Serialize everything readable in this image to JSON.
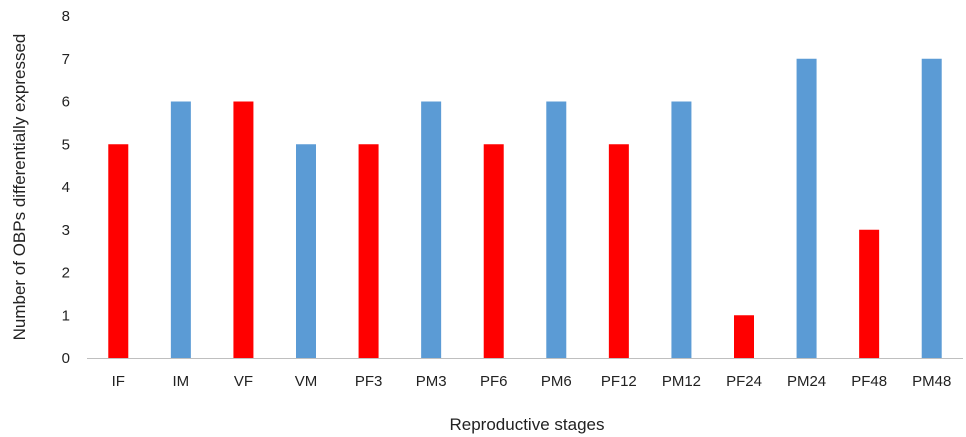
{
  "chart_data": {
    "type": "bar",
    "title": "",
    "xlabel": "Reproductive stages",
    "ylabel": "Number of OBPs differentially expressed",
    "categories": [
      "IF",
      "IM",
      "VF",
      "VM",
      "PF3",
      "PM3",
      "PF6",
      "PM6",
      "PF12",
      "PM12",
      "PF24",
      "PM24",
      "PF48",
      "PM48"
    ],
    "values": [
      5,
      6,
      6,
      5,
      5,
      6,
      5,
      6,
      5,
      6,
      1,
      7,
      3,
      7
    ],
    "bar_colors": [
      "#ff0000",
      "#5b9bd5",
      "#ff0000",
      "#5b9bd5",
      "#ff0000",
      "#5b9bd5",
      "#ff0000",
      "#5b9bd5",
      "#ff0000",
      "#5b9bd5",
      "#ff0000",
      "#5b9bd5",
      "#ff0000",
      "#5b9bd5"
    ],
    "ylim": [
      0,
      8
    ],
    "yticks": [
      0,
      1,
      2,
      3,
      4,
      5,
      6,
      7,
      8
    ],
    "grid": false,
    "legend": "none"
  }
}
